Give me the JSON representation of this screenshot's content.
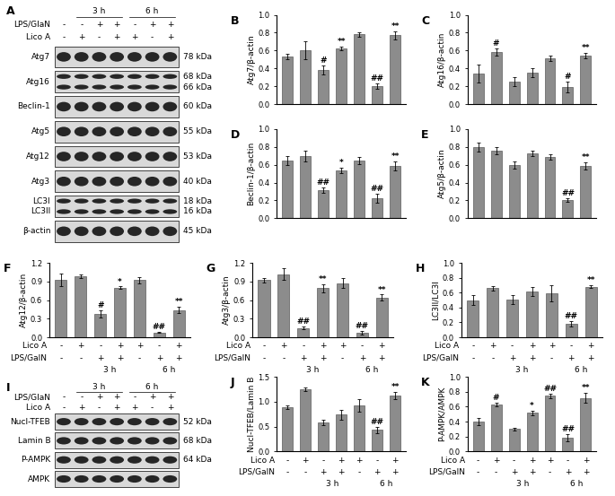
{
  "blots": [
    {
      "panel": "A",
      "header": {
        "groups": [
          {
            "label": "3 h",
            "span": [
              1,
              3
            ]
          },
          {
            "label": "6 h",
            "span": [
              4,
              6
            ]
          }
        ],
        "rows": [
          {
            "name": "LPS/GlaN",
            "signs": [
              "-",
              "-",
              "+",
              "+",
              "-",
              "+",
              "+"
            ]
          },
          {
            "name": "Lico A",
            "signs": [
              "-",
              "+",
              "-",
              "+",
              "+",
              "-",
              "+"
            ]
          }
        ]
      },
      "rows": [
        {
          "labels": [
            "Atg7"
          ],
          "kda": [
            "78 kDa"
          ]
        },
        {
          "labels": [
            "Atg16"
          ],
          "kda": [
            "68 kDa",
            "66 kDa"
          ]
        },
        {
          "labels": [
            "Beclin-1"
          ],
          "kda": [
            "60 kDa"
          ]
        },
        {
          "labels": [
            "Atg5"
          ],
          "kda": [
            "55 kDa"
          ]
        },
        {
          "labels": [
            "Atg12"
          ],
          "kda": [
            "53 kDa"
          ]
        },
        {
          "labels": [
            "Atg3"
          ],
          "kda": [
            "40 kDa"
          ]
        },
        {
          "labels": [
            "LC3I",
            "LC3II"
          ],
          "kda": [
            "18 kDa",
            "16 kDa"
          ]
        },
        {
          "labels": [
            "β-actin"
          ],
          "kda": [
            "45 kDa"
          ]
        }
      ]
    },
    {
      "panel": "I",
      "header": {
        "groups": [
          {
            "label": "3 h",
            "span": [
              1,
              3
            ]
          },
          {
            "label": "6 h",
            "span": [
              4,
              6
            ]
          }
        ],
        "rows": [
          {
            "name": "LPS/GlaN",
            "signs": [
              "-",
              "-",
              "+",
              "+",
              "-",
              "+",
              "+"
            ]
          },
          {
            "name": "Lico A",
            "signs": [
              "-",
              "+",
              "-",
              "+",
              "+",
              "-",
              "+"
            ]
          }
        ]
      },
      "rows": [
        {
          "labels": [
            "Nucl-TFEB"
          ],
          "kda": [
            "52 kDa"
          ]
        },
        {
          "labels": [
            "Lamin B"
          ],
          "kda": [
            "68 kDa"
          ]
        },
        {
          "labels": [
            "P-AMPK"
          ],
          "kda": [
            "64 kDa"
          ]
        },
        {
          "labels": [
            "AMPK"
          ],
          "kda": []
        }
      ]
    }
  ],
  "chart_data": [
    {
      "type": "bar",
      "panel": "B",
      "y_label": "Atg7/β-actin",
      "color": "#8c8c8c",
      "categories": [
        null,
        null,
        null,
        null,
        null,
        null,
        null
      ],
      "values": [
        0.53,
        0.6,
        0.38,
        0.62,
        0.78,
        0.2,
        0.77
      ],
      "errors": [
        0.03,
        0.1,
        0.05,
        0.02,
        0.03,
        0.03,
        0.05
      ],
      "annotations": [
        null,
        null,
        "#",
        "**",
        null,
        "##",
        "**"
      ],
      "ylim": [
        0,
        1.0
      ],
      "yticks": [
        {
          "value": 0,
          "label": "0.0"
        },
        {
          "value": 0.2,
          "label": "0.2"
        },
        {
          "value": 0.4,
          "label": "0.4"
        },
        {
          "value": 0.6,
          "label": "0.6"
        },
        {
          "value": 0.8,
          "label": "0.8"
        },
        {
          "value": 1.0,
          "label": "1.0"
        }
      ]
    },
    {
      "type": "bar",
      "panel": "C",
      "y_label": "Atg16/β-actin",
      "color": "#8c8c8c",
      "categories": [
        null,
        null,
        null,
        null,
        null,
        null,
        null
      ],
      "values": [
        0.34,
        0.58,
        0.25,
        0.35,
        0.51,
        0.19,
        0.54
      ],
      "errors": [
        0.1,
        0.04,
        0.05,
        0.05,
        0.03,
        0.06,
        0.03
      ],
      "annotations": [
        null,
        "#",
        null,
        null,
        null,
        "#",
        "**"
      ],
      "ylim": [
        0,
        1.0
      ],
      "yticks": [
        {
          "value": 0,
          "label": "0.0"
        },
        {
          "value": 0.2,
          "label": "0.2"
        },
        {
          "value": 0.4,
          "label": "0.4"
        },
        {
          "value": 0.6,
          "label": "0.6"
        },
        {
          "value": 0.8,
          "label": "0.8"
        },
        {
          "value": 1.0,
          "label": "1.0"
        }
      ]
    },
    {
      "type": "bar",
      "panel": "D",
      "y_label": "Beclin-1/β-actin",
      "color": "#8c8c8c",
      "categories": [
        null,
        null,
        null,
        null,
        null,
        null,
        null
      ],
      "values": [
        0.65,
        0.7,
        0.31,
        0.54,
        0.65,
        0.22,
        0.59
      ],
      "errors": [
        0.05,
        0.06,
        0.03,
        0.03,
        0.04,
        0.05,
        0.05
      ],
      "annotations": [
        null,
        null,
        "##",
        "*",
        null,
        "##",
        "**"
      ],
      "ylim": [
        0,
        1.0
      ],
      "yticks": [
        {
          "value": 0,
          "label": "0.0"
        },
        {
          "value": 0.2,
          "label": "0.2"
        },
        {
          "value": 0.4,
          "label": "0.4"
        },
        {
          "value": 0.6,
          "label": "0.6"
        },
        {
          "value": 0.8,
          "label": "0.8"
        },
        {
          "value": 1.0,
          "label": "1.0"
        }
      ]
    },
    {
      "type": "bar",
      "panel": "E",
      "y_label": "Atg5/β-actin",
      "color": "#8c8c8c",
      "categories": [
        null,
        null,
        null,
        null,
        null,
        null,
        null
      ],
      "values": [
        0.8,
        0.76,
        0.6,
        0.73,
        0.69,
        0.2,
        0.59
      ],
      "errors": [
        0.05,
        0.04,
        0.04,
        0.03,
        0.03,
        0.02,
        0.04
      ],
      "annotations": [
        null,
        null,
        null,
        null,
        null,
        "##",
        "**"
      ],
      "ylim": [
        0,
        1.0
      ],
      "yticks": [
        {
          "value": 0,
          "label": "0.0"
        },
        {
          "value": 0.2,
          "label": "0.2"
        },
        {
          "value": 0.4,
          "label": "0.4"
        },
        {
          "value": 0.6,
          "label": "0.6"
        },
        {
          "value": 0.8,
          "label": "0.8"
        },
        {
          "value": 1.0,
          "label": "1.0"
        }
      ]
    },
    {
      "type": "bar",
      "panel": "F",
      "y_label": "Atg12/β-actin",
      "color": "#8c8c8c",
      "categories": [
        null,
        null,
        null,
        null,
        null,
        null,
        null
      ],
      "values": [
        0.93,
        0.98,
        0.38,
        0.8,
        0.92,
        0.08,
        0.44
      ],
      "errors": [
        0.1,
        0.03,
        0.06,
        0.02,
        0.05,
        0.01,
        0.05
      ],
      "annotations": [
        null,
        null,
        "#",
        "*",
        null,
        "##",
        "**"
      ],
      "ylim": [
        0,
        1.2
      ],
      "yticks": [
        {
          "value": 0,
          "label": "0.0"
        },
        {
          "value": 0.3,
          "label": "0.3"
        },
        {
          "value": 0.6,
          "label": "0.6"
        },
        {
          "value": 0.9,
          "label": "0.9"
        },
        {
          "value": 1.2,
          "label": "1.2"
        }
      ],
      "conditions": {
        "rows": [
          {
            "name": "Lico A",
            "signs": [
              "-",
              "+",
              "-",
              "+",
              "+",
              "-",
              "+"
            ]
          },
          {
            "name": "LPS/GalN",
            "signs": [
              "-",
              "-",
              "+",
              "+",
              "-",
              "+",
              "+"
            ]
          }
        ],
        "groups": [
          {
            "label": "3 h",
            "span": [
              2,
              3
            ]
          },
          {
            "label": "6 h",
            "span": [
              5,
              6
            ]
          }
        ]
      }
    },
    {
      "type": "bar",
      "panel": "G",
      "y_label": "Atg3/β-actin",
      "color": "#8c8c8c",
      "categories": [
        null,
        null,
        null,
        null,
        null,
        null,
        null
      ],
      "values": [
        0.92,
        1.02,
        0.15,
        0.79,
        0.87,
        0.07,
        0.64
      ],
      "errors": [
        0.03,
        0.1,
        0.02,
        0.06,
        0.08,
        0.03,
        0.05
      ],
      "annotations": [
        null,
        null,
        "##",
        "**",
        null,
        "##",
        "**"
      ],
      "ylim": [
        0,
        1.2
      ],
      "yticks": [
        {
          "value": 0,
          "label": "0.0"
        },
        {
          "value": 0.3,
          "label": "0.3"
        },
        {
          "value": 0.6,
          "label": "0.6"
        },
        {
          "value": 0.9,
          "label": "0.9"
        },
        {
          "value": 1.2,
          "label": "1.2"
        }
      ],
      "conditions": {
        "rows": [
          {
            "name": "Lico A",
            "signs": [
              "-",
              "+",
              "-",
              "+",
              "+",
              "-",
              "+"
            ]
          },
          {
            "name": "LPS/GalN",
            "signs": [
              "-",
              "-",
              "+",
              "+",
              "-",
              "+",
              "+"
            ]
          }
        ],
        "groups": [
          {
            "label": "3 h",
            "span": [
              2,
              3
            ]
          },
          {
            "label": "6 h",
            "span": [
              5,
              6
            ]
          }
        ]
      }
    },
    {
      "type": "bar",
      "panel": "H",
      "y_label": "LC3II/LC3I",
      "color": "#8c8c8c",
      "categories": [
        null,
        null,
        null,
        null,
        null,
        null,
        null
      ],
      "values": [
        0.5,
        0.66,
        0.51,
        0.61,
        0.59,
        0.18,
        0.68
      ],
      "errors": [
        0.07,
        0.03,
        0.06,
        0.06,
        0.11,
        0.04,
        0.02
      ],
      "annotations": [
        null,
        null,
        null,
        null,
        null,
        "##",
        "**"
      ],
      "ylim": [
        0,
        1.0
      ],
      "yticks": [
        {
          "value": 0,
          "label": "0.0"
        },
        {
          "value": 0.2,
          "label": "0.2"
        },
        {
          "value": 0.4,
          "label": "0.4"
        },
        {
          "value": 0.6,
          "label": "0.6"
        },
        {
          "value": 0.8,
          "label": "0.8"
        },
        {
          "value": 1.0,
          "label": "1.0"
        }
      ],
      "conditions": {
        "rows": [
          {
            "name": "Lico A",
            "signs": [
              "-",
              "+",
              "-",
              "+",
              "+",
              "-",
              "+"
            ]
          },
          {
            "name": "LPS/GalN",
            "signs": [
              "-",
              "-",
              "+",
              "+",
              "-",
              "+",
              "+"
            ]
          }
        ],
        "groups": [
          {
            "label": "3 h",
            "span": [
              2,
              3
            ]
          },
          {
            "label": "6 h",
            "span": [
              5,
              6
            ]
          }
        ]
      }
    },
    {
      "type": "bar",
      "panel": "J",
      "y_label": "Nucl-TFEB/Lamin B",
      "color": "#8c8c8c",
      "categories": [
        null,
        null,
        null,
        null,
        null,
        null,
        null
      ],
      "values": [
        0.89,
        1.25,
        0.58,
        0.74,
        0.93,
        0.43,
        1.13
      ],
      "errors": [
        0.03,
        0.03,
        0.05,
        0.1,
        0.13,
        0.06,
        0.07
      ],
      "annotations": [
        null,
        null,
        null,
        null,
        null,
        "##",
        "**"
      ],
      "ylim": [
        0,
        1.5
      ],
      "yticks": [
        {
          "value": 0,
          "label": "0.0"
        },
        {
          "value": 0.5,
          "label": "0.5"
        },
        {
          "value": 1.0,
          "label": "1.0"
        },
        {
          "value": 1.5,
          "label": "1.5"
        }
      ],
      "conditions": {
        "rows": [
          {
            "name": "Lico A",
            "signs": [
              "-",
              "+",
              "-",
              "+",
              "+",
              "-",
              "+"
            ]
          },
          {
            "name": "LPS/GalN",
            "signs": [
              "-",
              "-",
              "+",
              "+",
              "-",
              "+",
              "+"
            ]
          }
        ],
        "groups": [
          {
            "label": "3 h",
            "span": [
              2,
              3
            ]
          },
          {
            "label": "6 h",
            "span": [
              5,
              6
            ]
          }
        ]
      }
    },
    {
      "type": "bar",
      "panel": "K",
      "y_label": "P-AMPK/AMPK",
      "color": "#8c8c8c",
      "categories": [
        null,
        null,
        null,
        null,
        null,
        null,
        null
      ],
      "values": [
        0.4,
        0.63,
        0.3,
        0.52,
        0.75,
        0.18,
        0.72
      ],
      "errors": [
        0.05,
        0.02,
        0.02,
        0.03,
        0.03,
        0.05,
        0.07
      ],
      "annotations": [
        null,
        "#",
        null,
        "*",
        "##",
        "##",
        "**"
      ],
      "ylim": [
        0,
        1.0
      ],
      "yticks": [
        {
          "value": 0,
          "label": "0.0"
        },
        {
          "value": 0.2,
          "label": "0.2"
        },
        {
          "value": 0.4,
          "label": "0.4"
        },
        {
          "value": 0.6,
          "label": "0.6"
        },
        {
          "value": 0.8,
          "label": "0.8"
        },
        {
          "value": 1.0,
          "label": "1.0"
        }
      ],
      "conditions": {
        "rows": [
          {
            "name": "Lico A",
            "signs": [
              "-",
              "+",
              "-",
              "+",
              "+",
              "-",
              "+"
            ]
          },
          {
            "name": "LPS/GalN",
            "signs": [
              "-",
              "-",
              "+",
              "+",
              "-",
              "+",
              "+"
            ]
          }
        ],
        "groups": [
          {
            "label": "3 h",
            "span": [
              2,
              3
            ]
          },
          {
            "label": "6 h",
            "span": [
              5,
              6
            ]
          }
        ]
      }
    }
  ]
}
